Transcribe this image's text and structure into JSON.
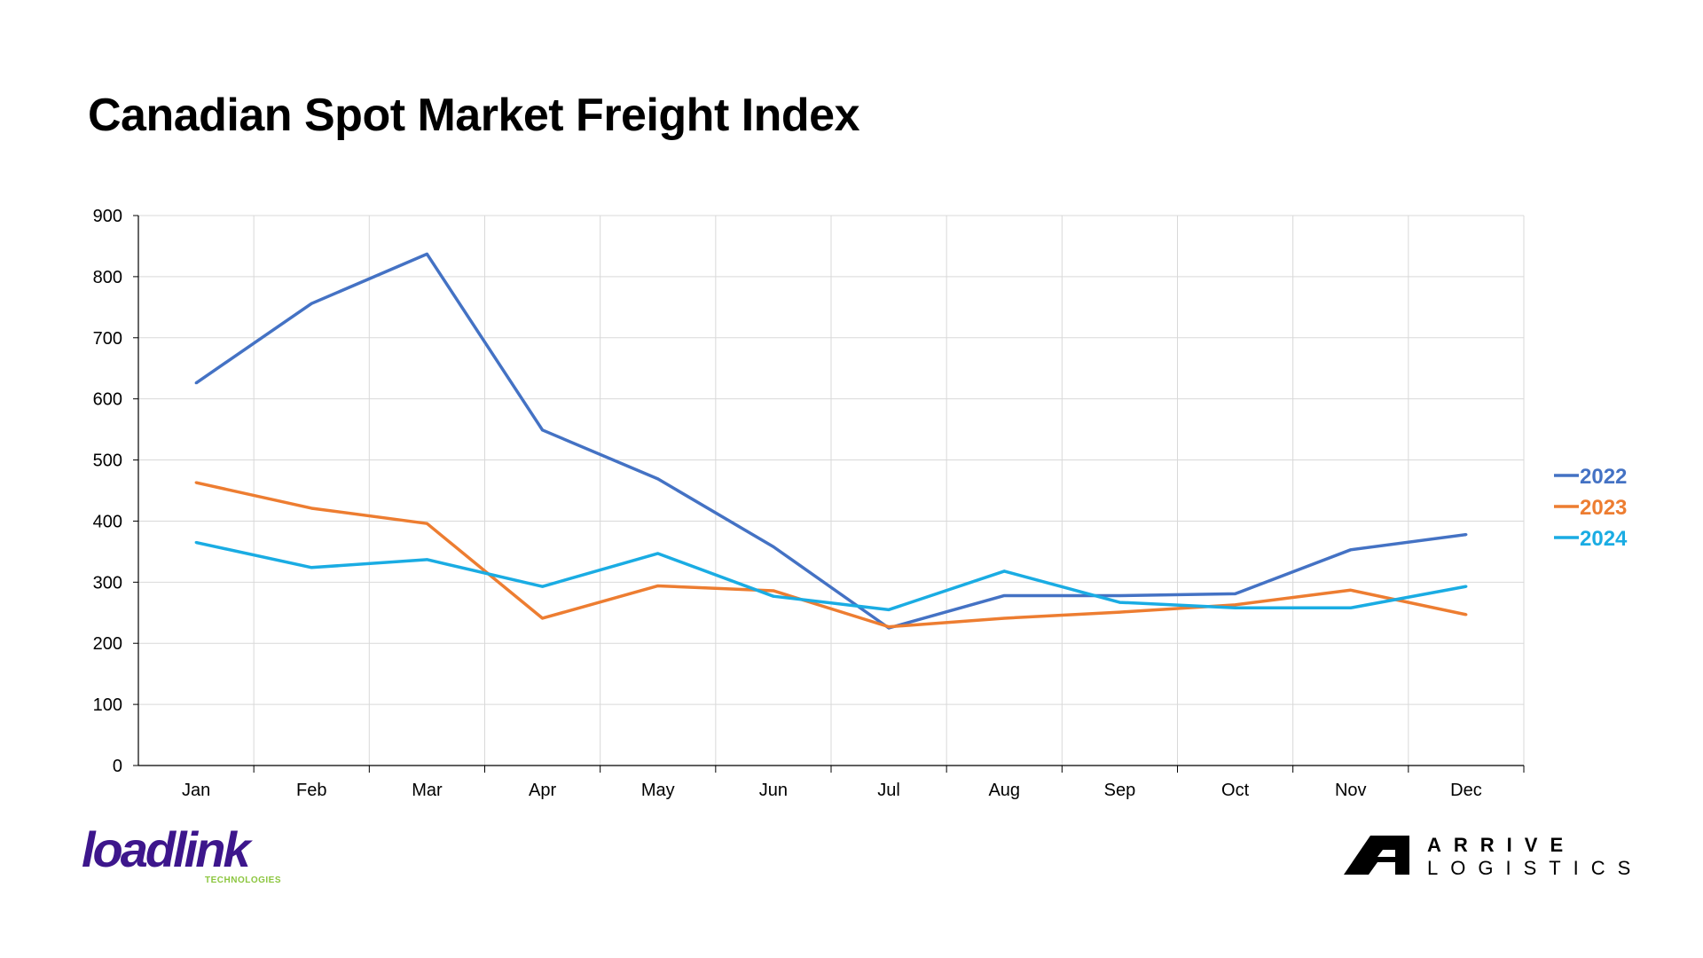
{
  "page": {
    "title": "Canadian Spot Market Freight Index"
  },
  "logos": {
    "left": {
      "name": "loadlink",
      "text": "loadlink",
      "subtext": "TECHNOLOGIES",
      "color": "#3d168c",
      "subcolor": "#8cc63f"
    },
    "right": {
      "name": "arrive-logistics",
      "line1": "ARRIVE",
      "line2": "LOGISTICS",
      "color": "#000000"
    }
  },
  "chart_data": {
    "type": "line",
    "categories": [
      "Jan",
      "Feb",
      "Mar",
      "Apr",
      "May",
      "Jun",
      "Jul",
      "Aug",
      "Sep",
      "Oct",
      "Nov",
      "Dec"
    ],
    "series": [
      {
        "name": "2022",
        "color": "#4472c4",
        "values": [
          626,
          756,
          837,
          549,
          469,
          358,
          225,
          278,
          278,
          281,
          353,
          378
        ]
      },
      {
        "name": "2023",
        "color": "#ed7d31",
        "values": [
          463,
          421,
          396,
          241,
          294,
          286,
          227,
          241,
          251,
          263,
          287,
          247
        ]
      },
      {
        "name": "2024",
        "color": "#1aace3",
        "values": [
          365,
          324,
          337,
          293,
          347,
          277,
          255,
          318,
          267,
          258,
          258,
          293
        ]
      }
    ],
    "ylim": [
      0,
      900
    ],
    "yticks": [
      0,
      100,
      200,
      300,
      400,
      500,
      600,
      700,
      800,
      900
    ],
    "xlabel": "",
    "ylabel": "",
    "grid": true,
    "legend": "right"
  }
}
